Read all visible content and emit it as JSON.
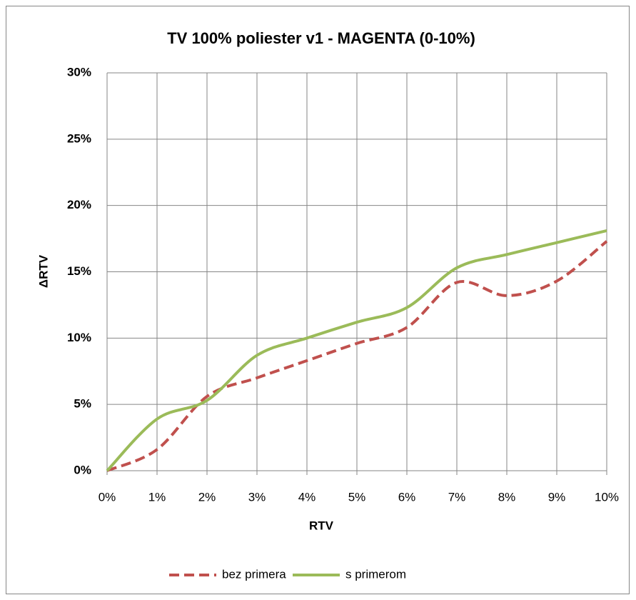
{
  "chart_data": {
    "type": "line",
    "title": "TV 100% poliester v1 - MAGENTA (0-10%)",
    "x_label": "RTV",
    "y_label": "ΔRTV",
    "x": [
      0,
      1,
      2,
      3,
      4,
      5,
      6,
      7,
      8,
      9,
      10
    ],
    "series": [
      {
        "name": "bez primera",
        "color": "#c0504d",
        "dash": true,
        "values": [
          0,
          1.6,
          5.6,
          7.0,
          8.3,
          9.6,
          10.8,
          14.2,
          13.2,
          14.3,
          17.3
        ]
      },
      {
        "name": "s primerom",
        "color": "#9bbb59",
        "dash": false,
        "values": [
          0,
          3.9,
          5.3,
          8.7,
          10.0,
          11.2,
          12.3,
          15.3,
          16.3,
          17.2,
          18.1
        ]
      }
    ],
    "xlim": [
      0,
      10
    ],
    "xticks": [
      {
        "value": 0,
        "label": "0%"
      },
      {
        "value": 1,
        "label": "1%"
      },
      {
        "value": 2,
        "label": "2%"
      },
      {
        "value": 3,
        "label": "3%"
      },
      {
        "value": 4,
        "label": "4%"
      },
      {
        "value": 5,
        "label": "5%"
      },
      {
        "value": 6,
        "label": "6%"
      },
      {
        "value": 7,
        "label": "7%"
      },
      {
        "value": 8,
        "label": "8%"
      },
      {
        "value": 9,
        "label": "9%"
      },
      {
        "value": 10,
        "label": "10%"
      }
    ],
    "ylim": [
      0,
      30
    ],
    "yticks": [
      {
        "value": 0,
        "label": "0%"
      },
      {
        "value": 5,
        "label": "5%"
      },
      {
        "value": 10,
        "label": "10%"
      },
      {
        "value": 15,
        "label": "15%"
      },
      {
        "value": 20,
        "label": "20%"
      },
      {
        "value": 25,
        "label": "25%"
      },
      {
        "value": 30,
        "label": "30%"
      }
    ],
    "grid": true,
    "legend": "bottom"
  }
}
